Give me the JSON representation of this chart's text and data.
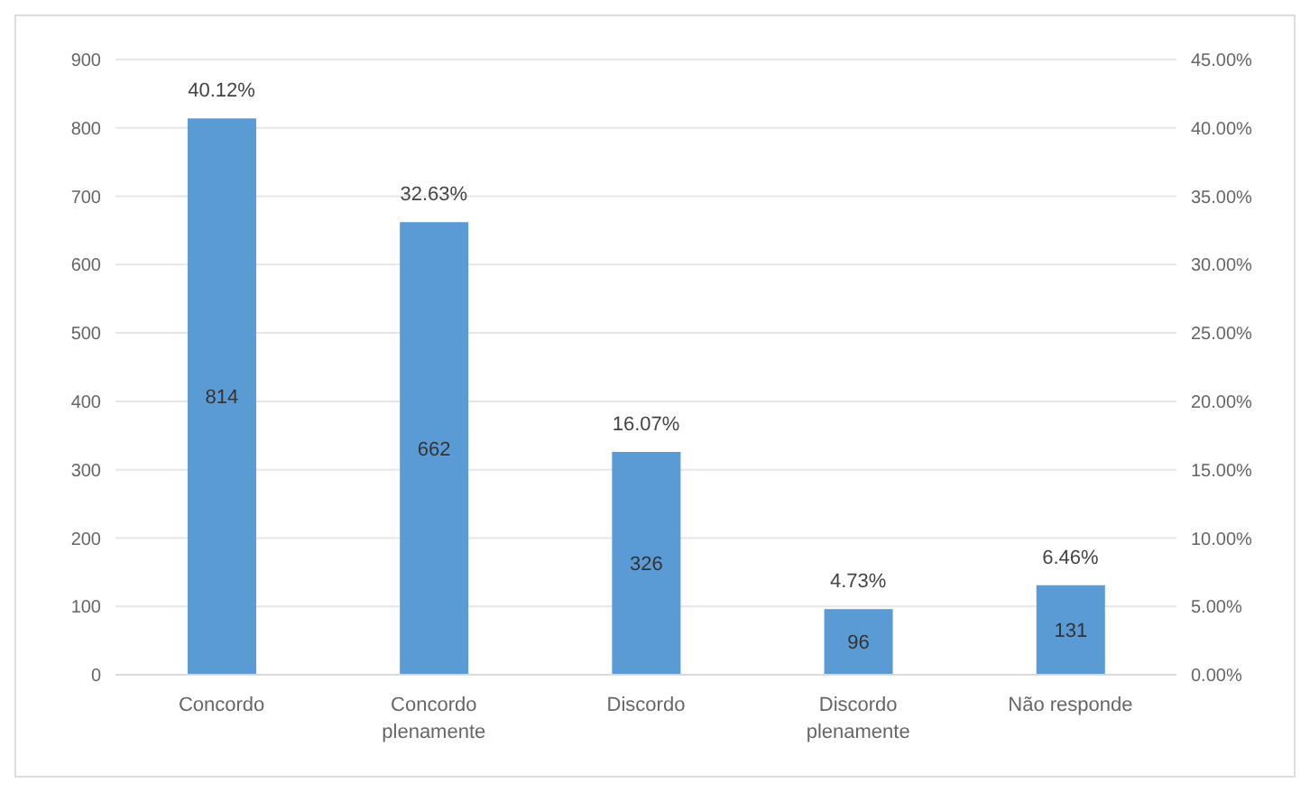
{
  "chart_data": {
    "type": "bar",
    "categories": [
      "Concordo",
      "Concordo plenamente",
      "Discordo",
      "Discordo plenamente",
      "Não responde"
    ],
    "values": [
      814,
      662,
      326,
      96,
      131
    ],
    "color": "#5b9bd5",
    "data_labels": true,
    "ylim": [
      0,
      900
    ],
    "yticks": [
      0,
      100,
      200,
      300,
      400,
      500,
      600,
      700,
      800,
      900
    ],
    "y2lim": [
      0,
      45
    ],
    "y2ticks": [
      {
        "value": 0,
        "label": "0.00%"
      },
      {
        "value": 5,
        "label": "5.00%"
      },
      {
        "value": 10,
        "label": "10.00%"
      },
      {
        "value": 15,
        "label": "15.00%"
      },
      {
        "value": 20,
        "label": "20.00%"
      },
      {
        "value": 25,
        "label": "25.00%"
      },
      {
        "value": 30,
        "label": "30.00%"
      },
      {
        "value": 35,
        "label": "35.00%"
      },
      {
        "value": 40,
        "label": "40.00%"
      },
      {
        "value": 45,
        "label": "45.00%"
      }
    ],
    "annotations": [
      {
        "text": "40.12%",
        "x": "Concordo",
        "y": 814
      },
      {
        "text": "32.63%",
        "x": "Concordo plenamente",
        "y": 662
      },
      {
        "text": "16.07%",
        "x": "Discordo",
        "y": 326
      },
      {
        "text": "4.73%",
        "x": "Discordo plenamente",
        "y": 96
      },
      {
        "text": "6.46%",
        "x": "Não responde",
        "y": 131
      }
    ],
    "grid": "y"
  }
}
